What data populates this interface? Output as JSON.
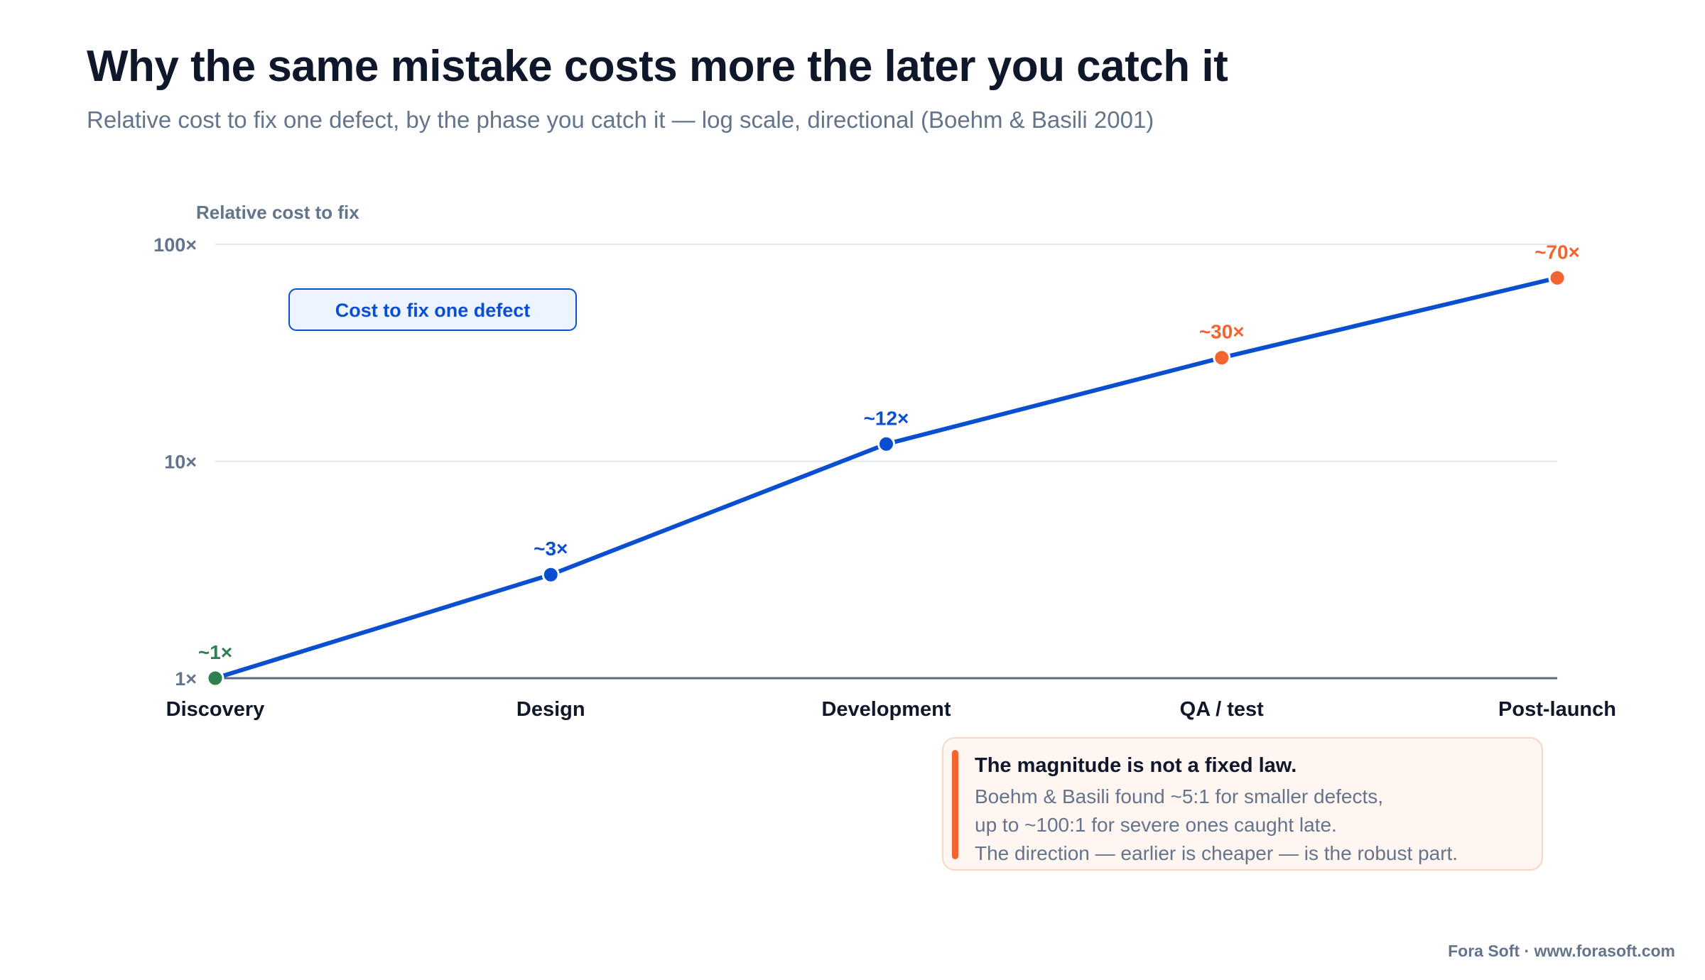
{
  "header": {
    "title": "Why the same mistake costs more the later you catch it",
    "subtitle": "Relative cost to fix one defect, by the phase you catch it — log scale, directional (Boehm & Basili 2001)"
  },
  "chart_data": {
    "type": "line",
    "scale": "log",
    "ylabel": "Relative cost to fix",
    "xlabel": "",
    "ylim": [
      1,
      100
    ],
    "yticks": [
      {
        "value": 1,
        "label": "1×"
      },
      {
        "value": 10,
        "label": "10×"
      },
      {
        "value": 100,
        "label": "100×"
      }
    ],
    "grid": true,
    "legend_placement": "top-left",
    "categories": [
      "Discovery",
      "Design",
      "Development",
      "QA / test",
      "Post-launch"
    ],
    "series": [
      {
        "name": "Cost to fix one defect",
        "color": "#0b4fd1",
        "values": [
          1,
          3,
          12,
          30,
          70
        ],
        "labels": [
          "~1×",
          "~3×",
          "~12×",
          "~30×",
          "~70×"
        ],
        "point_colors": [
          "#2e8050",
          "#0b4fd1",
          "#0b4fd1",
          "#f26430",
          "#f26430"
        ]
      }
    ]
  },
  "note": {
    "title": "The magnitude is not a fixed law.",
    "lines": [
      "Boehm & Basili found ~5:1 for smaller defects,",
      "up to ~100:1 for severe ones caught late.",
      "The direction — earlier is cheaper — is the robust part."
    ]
  },
  "footer": {
    "credit": "Fora Soft · www.forasoft.com"
  },
  "colors": {
    "line": "#0b4fd1",
    "early": "#2e8050",
    "mid": "#0b4fd1",
    "late": "#f26430",
    "axis": "#5b6b80",
    "grid": "#e2e8f0",
    "text_dark": "#0f172a",
    "text_muted": "#64748b"
  }
}
